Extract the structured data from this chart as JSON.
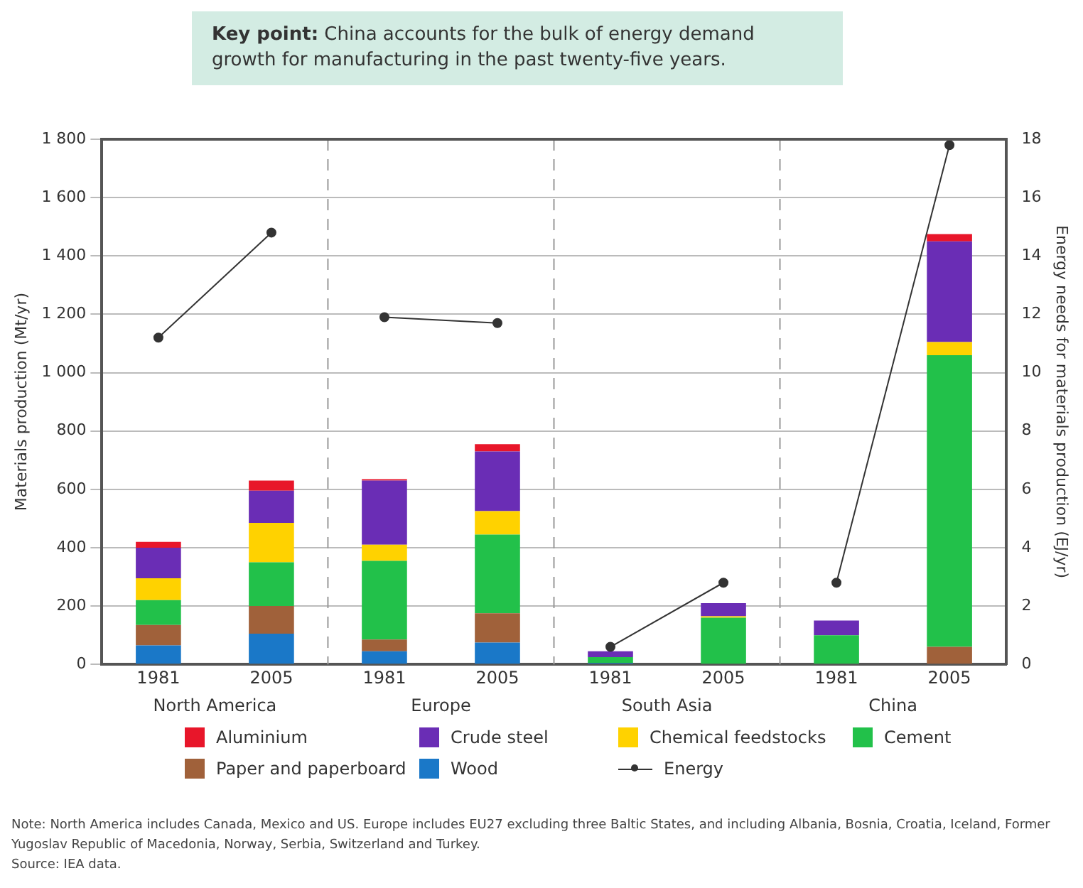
{
  "chart_data": {
    "type": "bar",
    "title": "Key point: China accounts for the bulk of energy demand growth for manufacturing in the past twenty-five years.",
    "categories": [
      "1981",
      "2005",
      "1981",
      "2005",
      "1981",
      "2005",
      "1981",
      "2005"
    ],
    "stacked": true,
    "series": [
      {
        "name": "Wood",
        "color": "#1a78c8",
        "values": [
          65,
          105,
          45,
          75,
          5,
          0,
          0,
          0
        ]
      },
      {
        "name": "Paper and paperboard",
        "color": "#a0613a",
        "values": [
          70,
          95,
          40,
          100,
          0,
          0,
          0,
          60
        ]
      },
      {
        "name": "Cement",
        "color": "#22c14a",
        "values": [
          85,
          150,
          270,
          270,
          20,
          160,
          100,
          1000
        ]
      },
      {
        "name": "Chemical feedstocks",
        "color": "#ffd200",
        "values": [
          75,
          135,
          55,
          80,
          0,
          5,
          0,
          45
        ]
      },
      {
        "name": "Crude steel",
        "color": "#6a2db5",
        "values": [
          105,
          110,
          220,
          205,
          20,
          45,
          50,
          345
        ]
      },
      {
        "name": "Aluminium",
        "color": "#e8162a",
        "values": [
          20,
          35,
          5,
          25,
          0,
          0,
          0,
          25
        ]
      },
      {
        "name": "Energy",
        "type": "line",
        "axis": "y2",
        "color": "#333333",
        "marker": "circle",
        "values": [
          11.2,
          14.8,
          11.9,
          11.7,
          0.6,
          2.8,
          2.8,
          17.8
        ]
      }
    ],
    "ylim": [
      0,
      1800
    ],
    "yticks": [
      0,
      200,
      400,
      600,
      800,
      {
        "value": 1000,
        "label": "1 000"
      },
      {
        "value": 1200,
        "label": "1 200"
      },
      {
        "value": 1400,
        "label": "1 400"
      },
      {
        "value": 1600,
        "label": "1 600"
      },
      {
        "value": 1800,
        "label": "1 800"
      }
    ],
    "y2lim": [
      0,
      18
    ],
    "y2ticks": [
      0,
      2,
      4,
      6,
      8,
      10,
      12,
      14,
      16,
      18
    ],
    "ylabel": "Materials production (Mt/yr)",
    "y2label": "Energy needs for materials production (EJ/yr)",
    "grid": "y",
    "legend": "bottom",
    "annotations": [
      "North America",
      "Europe",
      "South Asia",
      "China",
      "Note: North America includes Canada, Mexico and US. Europe includes EU27 excluding three Baltic States, and including Albania, Bosnia, Croatia, Iceland, Former Yugoslav Republic of Macedonia, Norway, Serbia, Switzerland and Turkey.",
      "Source: IEA data."
    ]
  }
}
